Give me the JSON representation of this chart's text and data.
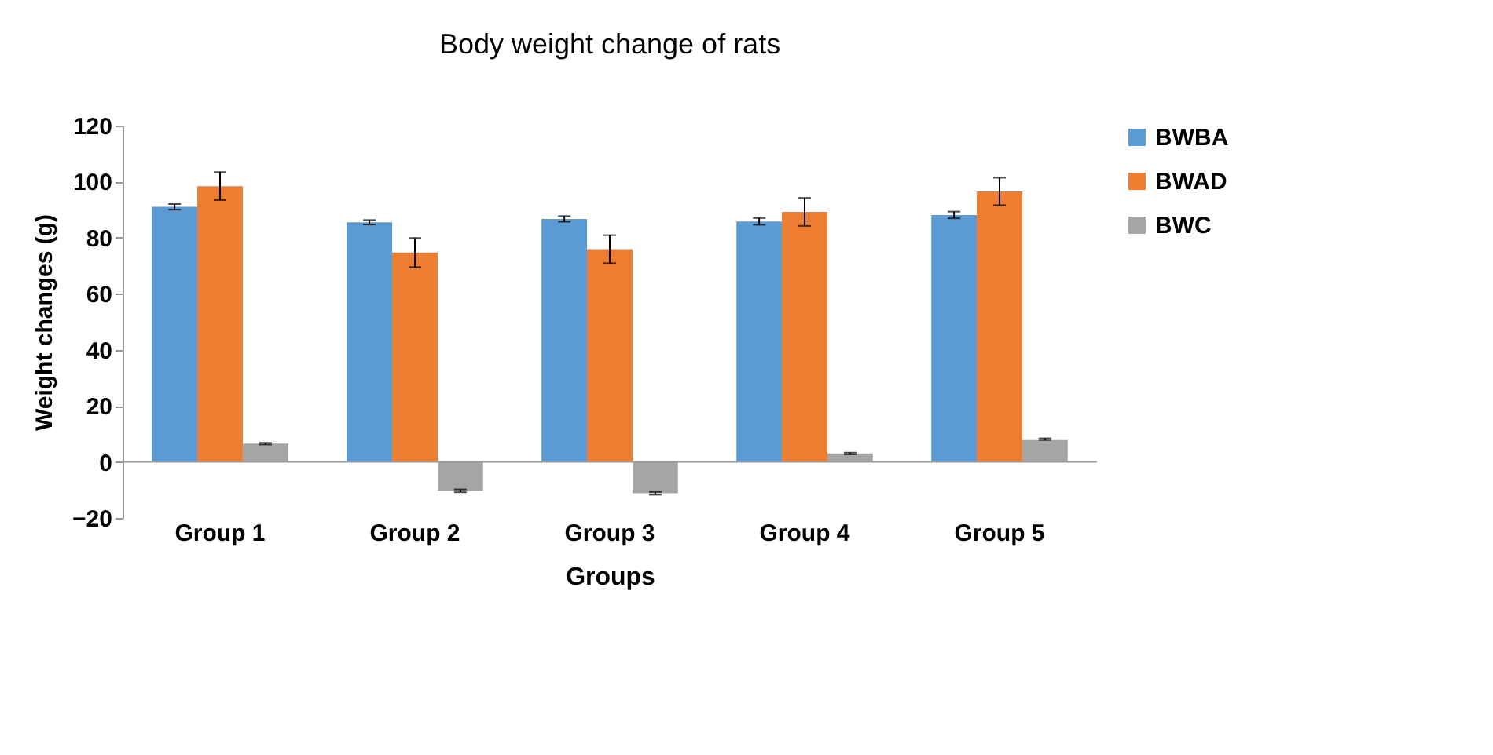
{
  "chart_data": {
    "type": "bar",
    "title": "Body weight change of rats",
    "xlabel": "Groups",
    "ylabel": "Weight changes (g)",
    "categories": [
      "Group 1",
      "Group 2",
      "Group 3",
      "Group 4",
      "Group 5"
    ],
    "series": [
      {
        "name": "BWBA",
        "color": "#5b9bd5",
        "values": [
          91,
          85.5,
          86.7,
          85.8,
          88.1
        ],
        "errors": [
          1,
          0.8,
          1,
          1.2,
          1.2
        ]
      },
      {
        "name": "BWAD",
        "color": "#ed7d31",
        "values": [
          98.4,
          74.7,
          75.9,
          89.2,
          96.5
        ],
        "errors": [
          5,
          5.2,
          5,
          5,
          4.9
        ]
      },
      {
        "name": "BWC",
        "color": "#a5a5a5",
        "values": [
          6.5,
          -10.3,
          -11.2,
          3,
          8.1
        ],
        "errors": [
          0.3,
          0.5,
          0.5,
          0.3,
          0.3
        ]
      }
    ],
    "ylim": [
      -20,
      120
    ],
    "yticks": [
      -20,
      0,
      20,
      40,
      60,
      80,
      100,
      120
    ],
    "grid": false,
    "legend": "right"
  }
}
